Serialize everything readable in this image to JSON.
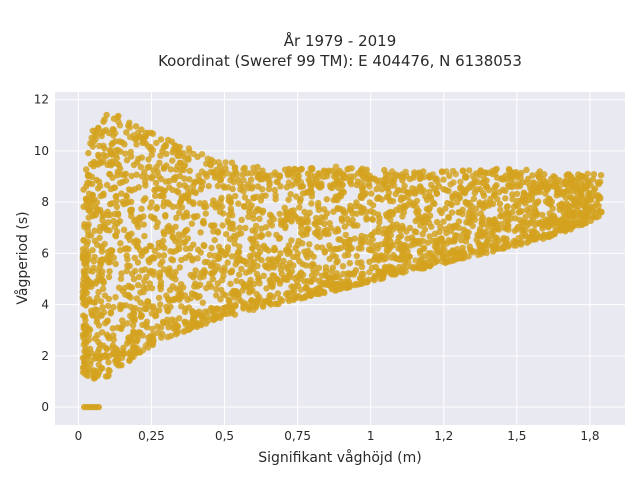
{
  "chart_data": {
    "type": "scatter",
    "title_line1": "År 1979 - 2019",
    "title_line2": "Koordinat (Sweref 99 TM): E 404476, N 6138053",
    "xlabel": "Signifikant våghöjd (m)",
    "ylabel": "Vågperiod (s)",
    "xlim": [
      -0.08,
      1.87
    ],
    "ylim": [
      -0.7,
      12.3
    ],
    "x_ticks": [
      0,
      0.25,
      0.5,
      0.75,
      1,
      1.25,
      1.5,
      1.75
    ],
    "x_tick_labels": [
      "0",
      "0,25",
      "0,5",
      "0,75",
      "1",
      "1,2",
      "1,5",
      "1,8"
    ],
    "y_ticks": [
      0,
      2,
      4,
      6,
      8,
      10,
      12
    ],
    "y_tick_labels": [
      "0",
      "2",
      "4",
      "6",
      "8",
      "10",
      "12"
    ],
    "grid": true,
    "legend": "none",
    "marker_color": "#d4a21f",
    "background_color": "#e9e9f1",
    "series": [
      {
        "values_description_free": true,
        "envelope": {
          "x": [
            0.02,
            0.05,
            0.1,
            0.15,
            0.2,
            0.25,
            0.3,
            0.4,
            0.5,
            0.6,
            0.75,
            0.9,
            1.0,
            1.1,
            1.25,
            1.4,
            1.5,
            1.6,
            1.7,
            1.8
          ],
          "y_low": [
            1.3,
            1.1,
            1.2,
            1.6,
            2.0,
            2.4,
            2.7,
            3.1,
            3.5,
            3.8,
            4.2,
            4.6,
            4.9,
            5.2,
            5.6,
            6.0,
            6.3,
            6.6,
            7.0,
            7.5
          ],
          "y_high": [
            9.0,
            11.0,
            11.7,
            11.3,
            11.0,
            10.8,
            10.5,
            10.0,
            9.6,
            9.4,
            9.3,
            9.4,
            9.3,
            9.2,
            9.2,
            9.3,
            9.3,
            9.2,
            9.1,
            9.2
          ]
        },
        "zero_period_points_x": [
          0.02,
          0.03,
          0.04,
          0.05,
          0.06,
          0.07
        ]
      }
    ]
  }
}
